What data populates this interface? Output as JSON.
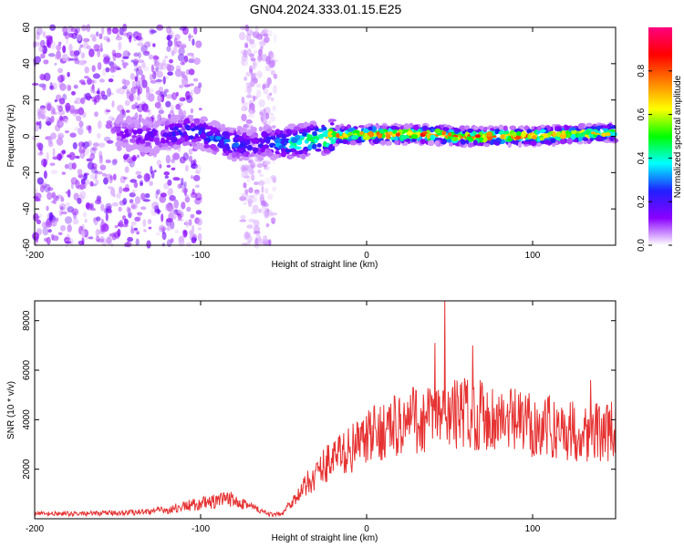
{
  "title": "GN04.2024.333.01.15.E25",
  "chart_data": [
    {
      "type": "heatmap",
      "xlabel": "Height of straight line (km)",
      "ylabel": "Frequency (Hz)",
      "xlim": [
        -200,
        150
      ],
      "ylim": [
        -60,
        60
      ],
      "x_ticks": [
        -200,
        -100,
        0,
        100
      ],
      "y_ticks": [
        -60,
        -40,
        -20,
        0,
        20,
        40,
        60
      ],
      "colorbar": {
        "label": "Normalized spectral amplitude",
        "range": [
          0,
          1
        ],
        "ticks": [
          0.0,
          0.2,
          0.4,
          0.6,
          0.8
        ],
        "colormap": [
          "#ffffff",
          "#8a00ff",
          "#2020ff",
          "#00ffff",
          "#00ff00",
          "#ffff00",
          "#ff8000",
          "#ff0000",
          "#ff0080"
        ]
      },
      "ridge": {
        "x": [
          -150,
          -130,
          -120,
          -110,
          -100,
          -90,
          -80,
          -70,
          -60,
          -50,
          -40,
          -30,
          -20,
          -10,
          0,
          20,
          40,
          60,
          80,
          100,
          120,
          150
        ],
        "frequency": [
          2,
          0,
          1,
          3,
          2,
          -2,
          -4,
          -5,
          -3,
          -4,
          -3,
          -1,
          0,
          1,
          1,
          1,
          1,
          0,
          0,
          0,
          1,
          2
        ],
        "amplitude": [
          0.12,
          0.18,
          0.22,
          0.28,
          0.25,
          0.3,
          0.3,
          0.2,
          0.25,
          0.35,
          0.5,
          0.55,
          0.7,
          0.75,
          0.8,
          0.8,
          0.82,
          0.82,
          0.8,
          0.78,
          0.72,
          0.65
        ]
      },
      "noise_regions": [
        {
          "x_from": -200,
          "x_to": -100,
          "freq_from": -60,
          "freq_to": 60,
          "amplitude": 0.1
        },
        {
          "x_from": -75,
          "x_to": -55,
          "freq_from": -60,
          "freq_to": 60,
          "amplitude": 0.05
        }
      ]
    },
    {
      "type": "line",
      "xlabel": "Height of straight line (km)",
      "ylabel": "SNR (10 * v/v)",
      "xlim": [
        -200,
        150
      ],
      "ylim": [
        0,
        8800
      ],
      "x_ticks": [
        -200,
        -100,
        0,
        100
      ],
      "y_ticks": [
        2000,
        4000,
        6000,
        8000
      ],
      "color": "#e63232",
      "series": [
        {
          "x": [
            -200,
            -180,
            -160,
            -140,
            -120,
            -110,
            -100,
            -90,
            -80,
            -75,
            -70,
            -60,
            -55,
            -50,
            -45,
            -40,
            -35,
            -30,
            -25,
            -20,
            -15,
            -10,
            -5,
            0,
            5,
            10,
            15,
            20,
            25,
            30,
            40,
            50,
            60,
            70,
            80,
            90,
            100,
            110,
            120,
            130,
            140,
            150
          ],
          "y": [
            200,
            200,
            220,
            260,
            350,
            500,
            600,
            700,
            800,
            700,
            500,
            200,
            150,
            300,
            700,
            1000,
            1500,
            1800,
            2200,
            2500,
            2600,
            2800,
            3000,
            3200,
            3400,
            3600,
            3700,
            3800,
            3800,
            3900,
            4100,
            4200,
            4300,
            4200,
            4000,
            3900,
            3800,
            3700,
            3600,
            3500,
            3500,
            3500
          ]
        }
      ],
      "peaks": [
        {
          "x": 47,
          "y": 8800
        },
        {
          "x": 41,
          "y": 7100
        },
        {
          "x": 64,
          "y": 7000
        },
        {
          "x": 28,
          "y": 5300
        },
        {
          "x": 135,
          "y": 5600
        }
      ]
    }
  ]
}
